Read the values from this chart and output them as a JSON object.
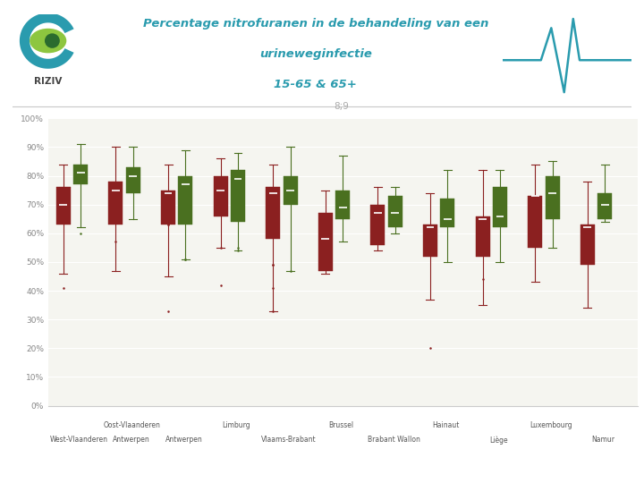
{
  "title_line1": "Percentage nitrofuranen in de behandeling van een",
  "title_line2": "urineweginfectie",
  "title_line3": "15-65 & 65+",
  "annotation": "8;9",
  "color_red": "#8B2020",
  "color_green": "#4A7020",
  "bg_color": "#F5F5F0",
  "boxes": [
    {
      "region_top": "",
      "region_bot": "West-Vlaanderen",
      "red": {
        "whislo": 0.46,
        "q1": 0.63,
        "med": 0.7,
        "q3": 0.76,
        "whishi": 0.84,
        "fliers": [
          0.41
        ]
      },
      "green": {
        "whislo": 0.62,
        "q1": 0.77,
        "med": 0.81,
        "q3": 0.84,
        "whishi": 0.91,
        "fliers": [
          0.6
        ]
      }
    },
    {
      "region_top": "Oost-Vlaanderen",
      "region_bot": "Antwerpen",
      "red": {
        "whislo": 0.47,
        "q1": 0.63,
        "med": 0.75,
        "q3": 0.78,
        "whishi": 0.9,
        "fliers": [
          0.57
        ]
      },
      "green": {
        "whislo": 0.65,
        "q1": 0.74,
        "med": 0.8,
        "q3": 0.83,
        "whishi": 0.9,
        "fliers": []
      }
    },
    {
      "region_top": "",
      "region_bot": "Antwerpen",
      "red": {
        "whislo": 0.45,
        "q1": 0.63,
        "med": 0.74,
        "q3": 0.75,
        "whishi": 0.84,
        "fliers": [
          0.63,
          0.63,
          0.33
        ]
      },
      "green": {
        "whislo": 0.51,
        "q1": 0.63,
        "med": 0.77,
        "q3": 0.8,
        "whishi": 0.89,
        "fliers": [
          0.51,
          0.51
        ]
      }
    },
    {
      "region_top": "Limburg",
      "region_bot": "",
      "red": {
        "whislo": 0.55,
        "q1": 0.66,
        "med": 0.75,
        "q3": 0.8,
        "whishi": 0.86,
        "fliers": [
          0.42,
          0.55
        ]
      },
      "green": {
        "whislo": 0.54,
        "q1": 0.64,
        "med": 0.79,
        "q3": 0.82,
        "whishi": 0.88,
        "fliers": [
          0.54,
          0.55
        ]
      }
    },
    {
      "region_top": "",
      "region_bot": "Vlaams-Brabant",
      "red": {
        "whislo": 0.33,
        "q1": 0.58,
        "med": 0.74,
        "q3": 0.76,
        "whishi": 0.84,
        "fliers": [
          0.33,
          0.41,
          0.49,
          0.49
        ]
      },
      "green": {
        "whislo": 0.47,
        "q1": 0.7,
        "med": 0.75,
        "q3": 0.8,
        "whishi": 0.9,
        "fliers": [
          0.47
        ]
      }
    },
    {
      "region_top": "Brussel",
      "region_bot": "",
      "red": {
        "whislo": 0.46,
        "q1": 0.47,
        "med": 0.58,
        "q3": 0.67,
        "whishi": 0.75,
        "fliers": []
      },
      "green": {
        "whislo": 0.57,
        "q1": 0.65,
        "med": 0.69,
        "q3": 0.75,
        "whishi": 0.87,
        "fliers": []
      }
    },
    {
      "region_top": "",
      "region_bot": "Brabant Wallon",
      "red": {
        "whislo": 0.54,
        "q1": 0.56,
        "med": 0.67,
        "q3": 0.7,
        "whishi": 0.76,
        "fliers": []
      },
      "green": {
        "whislo": 0.6,
        "q1": 0.62,
        "med": 0.67,
        "q3": 0.73,
        "whishi": 0.76,
        "fliers": []
      }
    },
    {
      "region_top": "Hainaut",
      "region_bot": "",
      "red": {
        "whislo": 0.37,
        "q1": 0.52,
        "med": 0.62,
        "q3": 0.63,
        "whishi": 0.74,
        "fliers": [
          0.2
        ]
      },
      "green": {
        "whislo": 0.5,
        "q1": 0.62,
        "med": 0.65,
        "q3": 0.72,
        "whishi": 0.82,
        "fliers": []
      }
    },
    {
      "region_top": "",
      "region_bot": "Liège",
      "red": {
        "whislo": 0.35,
        "q1": 0.52,
        "med": 0.65,
        "q3": 0.66,
        "whishi": 0.82,
        "fliers": [
          0.44
        ]
      },
      "green": {
        "whislo": 0.5,
        "q1": 0.62,
        "med": 0.66,
        "q3": 0.76,
        "whishi": 0.82,
        "fliers": []
      }
    },
    {
      "region_top": "Luxembourg",
      "region_bot": "",
      "red": {
        "whislo": 0.43,
        "q1": 0.55,
        "med": 0.73,
        "q3": 0.73,
        "whishi": 0.84,
        "fliers": []
      },
      "green": {
        "whislo": 0.55,
        "q1": 0.65,
        "med": 0.74,
        "q3": 0.8,
        "whishi": 0.85,
        "fliers": []
      }
    },
    {
      "region_top": "",
      "region_bot": "Namur",
      "red": {
        "whislo": 0.34,
        "q1": 0.49,
        "med": 0.62,
        "q3": 0.63,
        "whishi": 0.78,
        "fliers": []
      },
      "green": {
        "whislo": 0.64,
        "q1": 0.65,
        "med": 0.7,
        "q3": 0.74,
        "whishi": 0.84,
        "fliers": []
      }
    }
  ],
  "ytick_vals": [
    0.0,
    0.1,
    0.2,
    0.3,
    0.4,
    0.5,
    0.6,
    0.7,
    0.8,
    0.9,
    1.0
  ],
  "ytick_labels": [
    "0%",
    "10%",
    "20%",
    "30%",
    "40%",
    "50%",
    "60%",
    "70%",
    "80%",
    "90%",
    "100%"
  ]
}
